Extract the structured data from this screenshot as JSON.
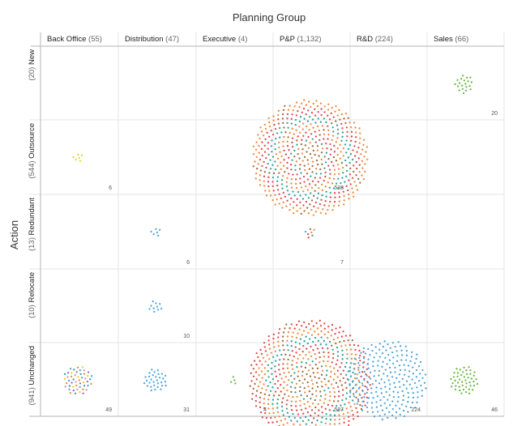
{
  "chart_data": {
    "type": "scatter",
    "title": "Planning Group",
    "ylabel": "Action",
    "columns": [
      {
        "name": "Back Office",
        "count": "(55)"
      },
      {
        "name": "Distribution",
        "count": "(47)"
      },
      {
        "name": "Executive",
        "count": "(4)"
      },
      {
        "name": "P&P",
        "count": "(1,132)"
      },
      {
        "name": "R&D",
        "count": "(224)"
      },
      {
        "name": "Sales",
        "count": "(66)"
      }
    ],
    "rows": [
      {
        "name": "New",
        "count": "(20)"
      },
      {
        "name": "Outsource",
        "count": "(544)"
      },
      {
        "name": "Redundant",
        "count": "(13)"
      },
      {
        "name": "Relocate",
        "count": "(10)"
      },
      {
        "name": "Unchanged",
        "count": "(941)"
      }
    ],
    "cells": [
      {
        "row": 0,
        "col": 5,
        "value": 20
      },
      {
        "row": 1,
        "col": 0,
        "value": 6
      },
      {
        "row": 1,
        "col": 3,
        "value": 538
      },
      {
        "row": 2,
        "col": 1,
        "value": 6
      },
      {
        "row": 2,
        "col": 3,
        "value": 7
      },
      {
        "row": 3,
        "col": 1,
        "value": 10
      },
      {
        "row": 4,
        "col": 0,
        "value": 49
      },
      {
        "row": 4,
        "col": 1,
        "value": 31
      },
      {
        "row": 4,
        "col": 2,
        "value": 4
      },
      {
        "row": 4,
        "col": 3,
        "value": 587
      },
      {
        "row": 4,
        "col": 4,
        "value": 224
      },
      {
        "row": 4,
        "col": 5,
        "value": 46
      }
    ],
    "grid": true
  },
  "colors": {
    "blue": "#4da3dc",
    "green": "#6ab845",
    "yellow": "#f2cf1d",
    "orange": "#f0883a",
    "red": "#e0474a",
    "teal": "#2aa39b",
    "brown": "#9a6a3b",
    "pink": "#e889b8",
    "purple": "#8e6cc0",
    "gridline": "#e6e6e6",
    "axisline": "#b5b5b5"
  }
}
